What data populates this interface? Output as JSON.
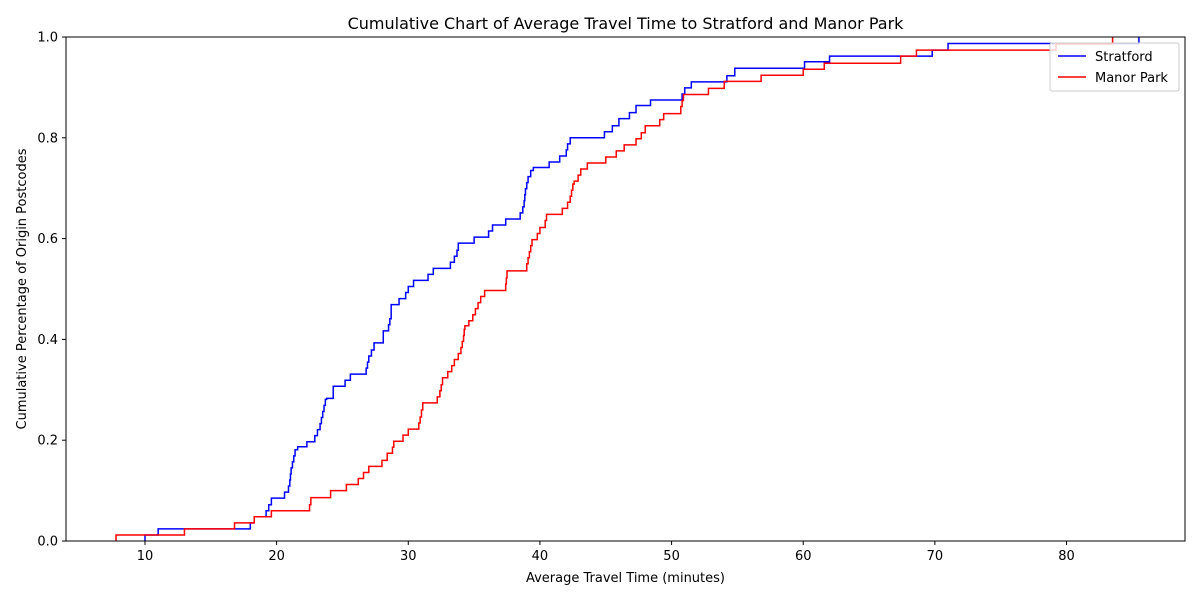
{
  "chart_data": {
    "type": "line",
    "title": "Cumulative Chart of Average Travel Time to Stratford and Manor Park",
    "xlabel": "Average Travel Time (minutes)",
    "ylabel": "Cumulative Percentage of Origin Postcodes",
    "xlim": [
      4,
      89
    ],
    "ylim": [
      0.0,
      1.0
    ],
    "xticks": [
      10,
      20,
      30,
      40,
      50,
      60,
      70,
      80
    ],
    "yticks": [
      0.0,
      0.2,
      0.4,
      0.6,
      0.8,
      1.0
    ],
    "xtick_labels": [
      "10",
      "20",
      "30",
      "40",
      "50",
      "60",
      "70",
      "80"
    ],
    "ytick_labels": [
      "0.0",
      "0.2",
      "0.4",
      "0.6",
      "0.8",
      "1.0"
    ],
    "grid": false,
    "legend_position": "top-right",
    "series": [
      {
        "name": "Stratford",
        "color": "#0000ff",
        "step": true,
        "points": [
          [
            10.0,
            0.0
          ],
          [
            10.0,
            0.012
          ],
          [
            11.0,
            0.024
          ],
          [
            13.0,
            0.024
          ],
          [
            18.0,
            0.036
          ],
          [
            18.3,
            0.048
          ],
          [
            19.2,
            0.06
          ],
          [
            19.4,
            0.072
          ],
          [
            19.6,
            0.085
          ],
          [
            20.6,
            0.097
          ],
          [
            20.9,
            0.109
          ],
          [
            21.0,
            0.121
          ],
          [
            21.05,
            0.133
          ],
          [
            21.1,
            0.145
          ],
          [
            21.2,
            0.157
          ],
          [
            21.3,
            0.169
          ],
          [
            21.4,
            0.181
          ],
          [
            21.6,
            0.187
          ],
          [
            22.3,
            0.197
          ],
          [
            22.9,
            0.209
          ],
          [
            23.1,
            0.221
          ],
          [
            23.3,
            0.233
          ],
          [
            23.4,
            0.245
          ],
          [
            23.5,
            0.257
          ],
          [
            23.6,
            0.269
          ],
          [
            23.7,
            0.281
          ],
          [
            23.8,
            0.283
          ],
          [
            24.3,
            0.307
          ],
          [
            25.2,
            0.319
          ],
          [
            25.6,
            0.331
          ],
          [
            26.8,
            0.343
          ],
          [
            26.9,
            0.355
          ],
          [
            27.0,
            0.367
          ],
          [
            27.2,
            0.379
          ],
          [
            27.4,
            0.393
          ],
          [
            28.1,
            0.417
          ],
          [
            28.5,
            0.429
          ],
          [
            28.6,
            0.441
          ],
          [
            28.7,
            0.469
          ],
          [
            29.3,
            0.481
          ],
          [
            29.8,
            0.493
          ],
          [
            30.0,
            0.505
          ],
          [
            30.4,
            0.517
          ],
          [
            31.5,
            0.529
          ],
          [
            31.9,
            0.541
          ],
          [
            33.2,
            0.553
          ],
          [
            33.5,
            0.565
          ],
          [
            33.7,
            0.577
          ],
          [
            33.8,
            0.591
          ],
          [
            35.0,
            0.603
          ],
          [
            36.1,
            0.615
          ],
          [
            36.4,
            0.627
          ],
          [
            37.4,
            0.639
          ],
          [
            38.5,
            0.651
          ],
          [
            38.7,
            0.663
          ],
          [
            38.8,
            0.675
          ],
          [
            38.85,
            0.687
          ],
          [
            38.9,
            0.699
          ],
          [
            39.0,
            0.711
          ],
          [
            39.1,
            0.723
          ],
          [
            39.3,
            0.735
          ],
          [
            39.5,
            0.741
          ],
          [
            40.7,
            0.752
          ],
          [
            41.5,
            0.764
          ],
          [
            42.0,
            0.776
          ],
          [
            42.1,
            0.788
          ],
          [
            42.3,
            0.8
          ],
          [
            44.9,
            0.812
          ],
          [
            45.5,
            0.824
          ],
          [
            46.0,
            0.838
          ],
          [
            46.8,
            0.85
          ],
          [
            47.3,
            0.864
          ],
          [
            48.4,
            0.875
          ],
          [
            50.8,
            0.887
          ],
          [
            51.0,
            0.899
          ],
          [
            51.5,
            0.911
          ],
          [
            54.2,
            0.923
          ],
          [
            54.8,
            0.938
          ],
          [
            60.1,
            0.951
          ],
          [
            62.0,
            0.962
          ],
          [
            69.8,
            0.974
          ],
          [
            71.0,
            0.987
          ],
          [
            85.5,
            1.0
          ]
        ]
      },
      {
        "name": "Manor Park",
        "color": "#ff0000",
        "step": true,
        "points": [
          [
            7.8,
            0.0
          ],
          [
            7.8,
            0.012
          ],
          [
            13.0,
            0.024
          ],
          [
            16.8,
            0.036
          ],
          [
            18.3,
            0.048
          ],
          [
            19.6,
            0.06
          ],
          [
            22.5,
            0.072
          ],
          [
            22.6,
            0.086
          ],
          [
            24.1,
            0.1
          ],
          [
            25.3,
            0.112
          ],
          [
            26.2,
            0.124
          ],
          [
            26.6,
            0.136
          ],
          [
            27.0,
            0.148
          ],
          [
            28.0,
            0.16
          ],
          [
            28.4,
            0.174
          ],
          [
            28.8,
            0.186
          ],
          [
            28.9,
            0.198
          ],
          [
            29.6,
            0.21
          ],
          [
            30.0,
            0.222
          ],
          [
            30.8,
            0.234
          ],
          [
            30.9,
            0.246
          ],
          [
            31.0,
            0.26
          ],
          [
            31.1,
            0.274
          ],
          [
            32.2,
            0.286
          ],
          [
            32.4,
            0.298
          ],
          [
            32.5,
            0.31
          ],
          [
            32.6,
            0.324
          ],
          [
            33.0,
            0.336
          ],
          [
            33.3,
            0.348
          ],
          [
            33.5,
            0.36
          ],
          [
            33.8,
            0.372
          ],
          [
            34.0,
            0.384
          ],
          [
            34.1,
            0.396
          ],
          [
            34.2,
            0.408
          ],
          [
            34.25,
            0.42
          ],
          [
            34.3,
            0.427
          ],
          [
            34.6,
            0.437
          ],
          [
            34.9,
            0.449
          ],
          [
            35.1,
            0.461
          ],
          [
            35.3,
            0.473
          ],
          [
            35.5,
            0.485
          ],
          [
            35.8,
            0.497
          ],
          [
            37.4,
            0.51
          ],
          [
            37.45,
            0.522
          ],
          [
            37.5,
            0.536
          ],
          [
            39.0,
            0.55
          ],
          [
            39.1,
            0.562
          ],
          [
            39.2,
            0.574
          ],
          [
            39.3,
            0.586
          ],
          [
            39.4,
            0.598
          ],
          [
            39.8,
            0.61
          ],
          [
            40.0,
            0.622
          ],
          [
            40.4,
            0.636
          ],
          [
            40.5,
            0.648
          ],
          [
            41.7,
            0.66
          ],
          [
            42.1,
            0.672
          ],
          [
            42.3,
            0.684
          ],
          [
            42.4,
            0.696
          ],
          [
            42.5,
            0.708
          ],
          [
            42.6,
            0.714
          ],
          [
            42.9,
            0.726
          ],
          [
            43.1,
            0.738
          ],
          [
            43.6,
            0.75
          ],
          [
            45.0,
            0.762
          ],
          [
            45.8,
            0.774
          ],
          [
            46.4,
            0.786
          ],
          [
            47.3,
            0.798
          ],
          [
            47.7,
            0.81
          ],
          [
            48.0,
            0.824
          ],
          [
            49.1,
            0.836
          ],
          [
            49.4,
            0.848
          ],
          [
            50.7,
            0.862
          ],
          [
            50.8,
            0.874
          ],
          [
            50.9,
            0.886
          ],
          [
            52.8,
            0.898
          ],
          [
            54.0,
            0.912
          ],
          [
            56.8,
            0.924
          ],
          [
            60.0,
            0.936
          ],
          [
            61.6,
            0.948
          ],
          [
            67.4,
            0.962
          ],
          [
            68.6,
            0.974
          ],
          [
            79.2,
            0.986
          ],
          [
            83.5,
            1.0
          ]
        ]
      }
    ]
  }
}
